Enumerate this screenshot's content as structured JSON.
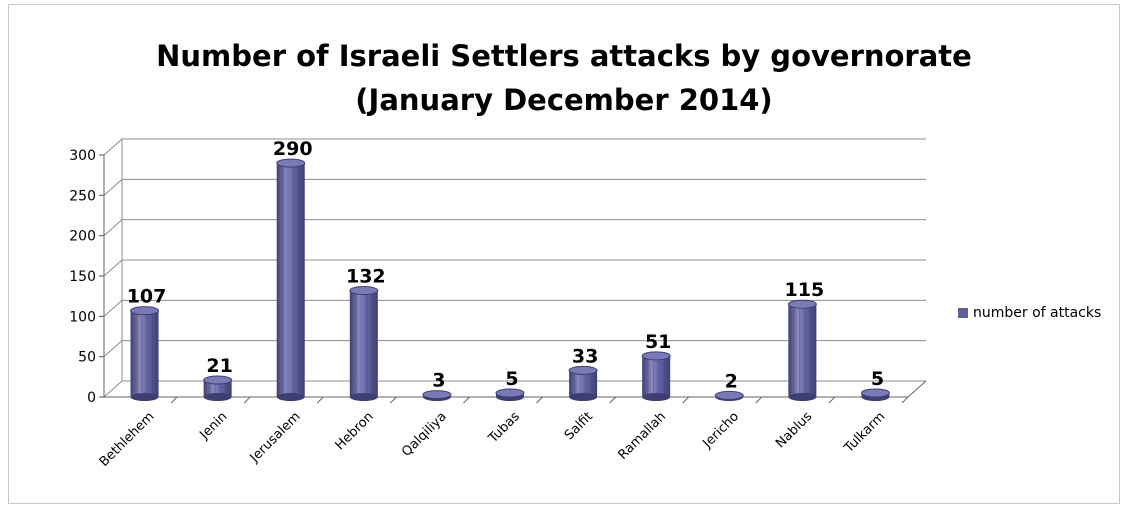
{
  "chart_data": {
    "type": "bar",
    "title_line1": "Number of Israeli Settlers attacks  by governorate",
    "title_line2": "(January December 2014)",
    "categories": [
      "Bethlehem",
      "Jenin",
      "Jerusalem",
      "Hebron",
      "Qalqiliya",
      "Tubas",
      "Salfit",
      "Ramallah",
      "Jericho",
      "Nablus",
      "Tulkarm"
    ],
    "series": [
      {
        "name": "number of attacks",
        "values": [
          107,
          21,
          290,
          132,
          3,
          5,
          33,
          51,
          2,
          115,
          5
        ]
      }
    ],
    "ylim": [
      0,
      300
    ],
    "yticks": [
      "0",
      "50",
      "100",
      "150",
      "200",
      "250",
      "300"
    ],
    "grid": true,
    "legend_position": "right",
    "colors": {
      "bar": "#5f5f9e",
      "bar_light": "#8a8ac0",
      "bar_dark": "#3e3e72",
      "grid": "#8c8c8c"
    }
  }
}
